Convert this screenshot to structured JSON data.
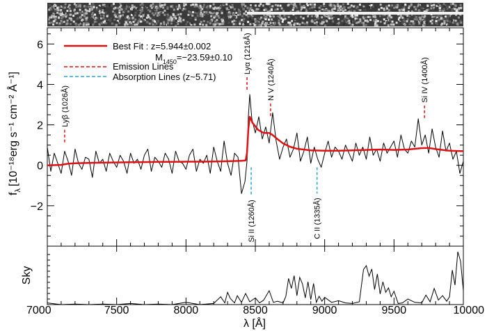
{
  "chart_data": {
    "type": "line",
    "spectrum_strip": "2D spectrum image",
    "legend": {
      "best_fit_label": "Best Fit : z=5.944±0.002",
      "magnitude_prefix": "M",
      "magnitude_subscript": "1450",
      "magnitude_value": "=−23.59±0.10",
      "emission_label": "Emission Lines",
      "absorption_label": "Absorption Lines (z~5.71)",
      "colors": {
        "data": "#000000",
        "fit": "#dd1111",
        "emission": "#dd1111",
        "absorption": "#22a6d6"
      }
    },
    "main_panel": {
      "ylabel_prefix": "f",
      "ylabel_subscript": "λ",
      "ylabel_units": "[10⁻¹⁸erg s⁻¹ cm⁻² Å⁻¹]",
      "ylim": [
        -4,
        6.8
      ],
      "yticks": [
        -2,
        0,
        2,
        4,
        6
      ],
      "ytick_labels": [
        "−2",
        "0",
        "2",
        "4",
        "6"
      ],
      "series": [
        {
          "name": "data",
          "color": "#000000",
          "x": [
            7000,
            7025,
            7050,
            7075,
            7100,
            7125,
            7150,
            7175,
            7200,
            7225,
            7250,
            7275,
            7300,
            7325,
            7350,
            7375,
            7400,
            7425,
            7450,
            7475,
            7500,
            7525,
            7550,
            7575,
            7600,
            7625,
            7650,
            7675,
            7700,
            7725,
            7750,
            7775,
            7800,
            7825,
            7850,
            7875,
            7900,
            7925,
            7950,
            7975,
            8000,
            8025,
            8050,
            8075,
            8100,
            8125,
            8150,
            8175,
            8200,
            8225,
            8250,
            8275,
            8300,
            8325,
            8350,
            8375,
            8400,
            8425,
            8440,
            8450,
            8460,
            8475,
            8500,
            8525,
            8550,
            8575,
            8600,
            8625,
            8650,
            8675,
            8700,
            8725,
            8750,
            8775,
            8800,
            8825,
            8850,
            8875,
            8900,
            8925,
            8950,
            8975,
            9000,
            9025,
            9050,
            9075,
            9100,
            9125,
            9150,
            9175,
            9200,
            9225,
            9250,
            9275,
            9300,
            9325,
            9350,
            9375,
            9400,
            9425,
            9450,
            9475,
            9500,
            9525,
            9550,
            9575,
            9600,
            9625,
            9650,
            9675,
            9700,
            9725,
            9750,
            9775,
            9800,
            9825,
            9850,
            9875,
            9900,
            9925,
            9950,
            9975,
            10000
          ],
          "y": [
            0.9,
            -0.3,
            0.6,
            0.1,
            -0.4,
            0.7,
            0.2,
            -0.5,
            0.8,
            0.1,
            -0.2,
            0.4,
            0.3,
            -0.6,
            0.7,
            0.1,
            0.3,
            -0.3,
            0.6,
            0.2,
            -0.1,
            0.5,
            0.2,
            -0.4,
            0.6,
            0.1,
            0.3,
            -0.2,
            0.5,
            0.8,
            -0.3,
            0.4,
            0.2,
            -0.1,
            0.6,
            0.3,
            -0.4,
            0.7,
            0.2,
            0.1,
            -0.2,
            0.5,
            0.8,
            -0.3,
            0.3,
            0.1,
            0.5,
            -0.4,
            0.9,
            0.2,
            -0.3,
            1.2,
            0.1,
            -0.5,
            0.6,
            0.4,
            -1.4,
            -0.8,
            0.2,
            2.4,
            3.5,
            2.3,
            1.6,
            2.4,
            1.3,
            1.9,
            1.1,
            2.6,
            1.2,
            0.3,
            0.9,
            1.3,
            0.4,
            0.8,
            1.6,
            0.2,
            0.7,
            1.4,
            0.1,
            0.9,
            0.3,
            -0.1,
            0.6,
            1.2,
            0.4,
            0.9,
            0.7,
            0.3,
            1.0,
            0.6,
            0.2,
            1.1,
            0.5,
            0.9,
            0.3,
            1.4,
            0.5,
            0.8,
            0.2,
            1.1,
            0.6,
            0.9,
            1.2,
            0.4,
            1.5,
            0.8,
            0.6,
            1.2,
            0.9,
            2.3,
            1.0,
            1.5,
            0.6,
            1.8,
            0.9,
            0.4,
            1.7,
            0.7,
            1.1,
            0.3,
            0.7,
            -0.4,
            0.2
          ]
        },
        {
          "name": "Best Fit",
          "color": "#dd1111",
          "x": [
            7000,
            7100,
            7150,
            7200,
            7300,
            7400,
            7500,
            7600,
            7700,
            7800,
            7900,
            8000,
            8100,
            8200,
            8300,
            8400,
            8430,
            8440,
            8450,
            8460,
            8480,
            8520,
            8560,
            8600,
            8620,
            8650,
            8700,
            8750,
            8800,
            8900,
            9000,
            9100,
            9200,
            9300,
            9400,
            9500,
            9600,
            9700,
            9750,
            9800,
            9900,
            10000
          ],
          "y": [
            0.0,
            0.02,
            0.08,
            0.1,
            0.12,
            0.13,
            0.14,
            0.15,
            0.16,
            0.17,
            0.17,
            0.18,
            0.18,
            0.19,
            0.2,
            0.22,
            0.24,
            0.6,
            1.8,
            2.4,
            2.1,
            1.75,
            1.6,
            1.6,
            1.52,
            1.35,
            1.08,
            0.92,
            0.82,
            0.74,
            0.72,
            0.72,
            0.74,
            0.76,
            0.78,
            0.76,
            0.78,
            0.85,
            0.86,
            0.8,
            0.72,
            0.7
          ]
        }
      ],
      "emission_lines": [
        {
          "label": "Lyβ (1026Å)",
          "x": 7125,
          "y_top": 1.0
        },
        {
          "label": "Lyα (1216Å)",
          "x": 8440,
          "y_top": 3.6
        },
        {
          "label": "N V (1240Å)",
          "x": 8610,
          "y_top": 2.3
        },
        {
          "label": "Si IV (1400Å)",
          "x": 9720,
          "y_top": 2.2
        }
      ],
      "absorption_lines": [
        {
          "label": "Si II (1260Å)",
          "x": 8470,
          "y_bottom": -1.5
        },
        {
          "label": "C II (1335Å)",
          "x": 8945,
          "y_bottom": -1.4
        }
      ]
    },
    "sky_panel": {
      "ylabel": "Sky",
      "x": [
        7000,
        7100,
        7200,
        7300,
        7400,
        7500,
        7600,
        7700,
        7800,
        7900,
        8000,
        8100,
        8200,
        8250,
        8280,
        8300,
        8320,
        8350,
        8370,
        8400,
        8430,
        8460,
        8500,
        8530,
        8560,
        8600,
        8630,
        8660,
        8700,
        8720,
        8740,
        8760,
        8780,
        8800,
        8820,
        8840,
        8860,
        8880,
        8900,
        8920,
        8940,
        8960,
        8980,
        9000,
        9050,
        9100,
        9150,
        9200,
        9250,
        9280,
        9300,
        9320,
        9340,
        9360,
        9380,
        9400,
        9420,
        9440,
        9460,
        9480,
        9500,
        9530,
        9560,
        9600,
        9650,
        9700,
        9730,
        9760,
        9790,
        9820,
        9850,
        9880,
        9900,
        9920,
        9940,
        9960,
        9980,
        10000
      ],
      "y": [
        0.3,
        0.0,
        0.1,
        0.0,
        0.1,
        0.0,
        0.2,
        0.0,
        0.1,
        0.0,
        0.4,
        0.0,
        0.2,
        1.4,
        0.3,
        2.2,
        1.1,
        0.3,
        1.6,
        0.4,
        2.0,
        0.5,
        1.2,
        0.3,
        0.8,
        2.5,
        0.4,
        0.6,
        0.3,
        1.5,
        4.7,
        2.9,
        5.2,
        1.6,
        4.9,
        3.7,
        1.2,
        4.1,
        0.9,
        3.8,
        0.4,
        1.5,
        0.6,
        1.3,
        0.4,
        0.7,
        0.3,
        0.2,
        0.5,
        6.3,
        7.0,
        5.1,
        6.4,
        2.7,
        5.5,
        1.9,
        4.1,
        2.2,
        3.0,
        1.4,
        2.4,
        0.2,
        0.3,
        1.0,
        0.4,
        0.3,
        1.7,
        0.5,
        2.9,
        0.8,
        1.6,
        0.6,
        1.4,
        6.2,
        3.5,
        9.5,
        7.8,
        2.5
      ],
      "ylim": [
        0,
        10
      ]
    },
    "xaxis": {
      "label": "λ [Å]",
      "xlim": [
        7000,
        10000
      ],
      "ticks": [
        7000,
        7500,
        8000,
        8500,
        9000,
        9500,
        10000
      ],
      "tick_labels": [
        "7000",
        "7500",
        "8000",
        "8500",
        "9000",
        "9500",
        "10000"
      ]
    }
  }
}
